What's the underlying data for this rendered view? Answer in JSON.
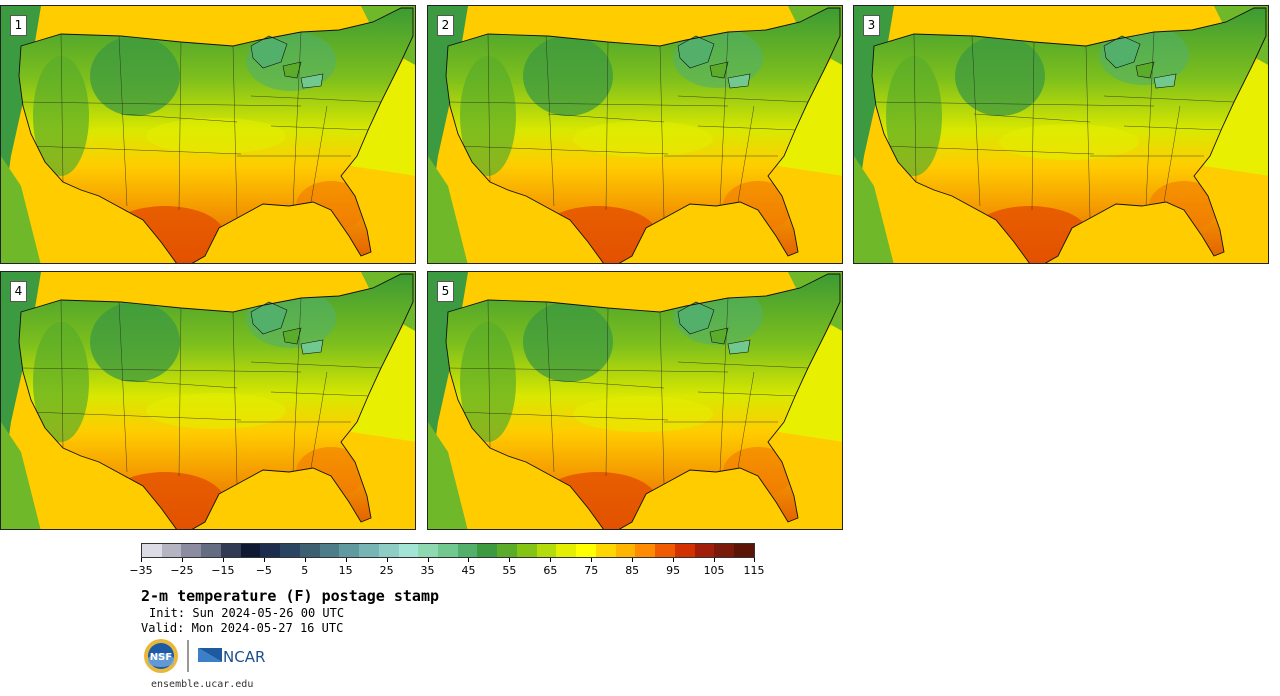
{
  "panels": [
    {
      "label": "1"
    },
    {
      "label": "2"
    },
    {
      "label": "3"
    },
    {
      "label": "4"
    },
    {
      "label": "5"
    }
  ],
  "colorbar": {
    "colors": [
      "#dcdce6",
      "#b4b4c3",
      "#8c8ca0",
      "#646c82",
      "#303a55",
      "#0e1833",
      "#1c2d4d",
      "#2a4562",
      "#3c5f72",
      "#4d7d88",
      "#5f9aa0",
      "#76b5b3",
      "#8ecdc5",
      "#a2e4d6",
      "#8fd9b0",
      "#72c98f",
      "#52b06b",
      "#3c9a40",
      "#5aac2a",
      "#84c414",
      "#b4db0a",
      "#e3ee00",
      "#ffff00",
      "#ffd700",
      "#ffb400",
      "#ff8c00",
      "#f05a00",
      "#d23200",
      "#a01e0a",
      "#7a1a0a",
      "#5a1408"
    ],
    "tick_labels": [
      "−35",
      "−25",
      "−15",
      "−5",
      "5",
      "15",
      "25",
      "35",
      "45",
      "55",
      "65",
      "75",
      "85",
      "95",
      "105",
      "115"
    ]
  },
  "title": "2-m temperature (F) postage stamp",
  "init": "Init: Sun 2024-05-26 00 UTC",
  "valid": "Valid: Mon 2024-05-27 16 UTC",
  "logos": {
    "nsf": "NSF",
    "ncar": "NCAR"
  },
  "url": "ensemble.ucar.edu"
}
